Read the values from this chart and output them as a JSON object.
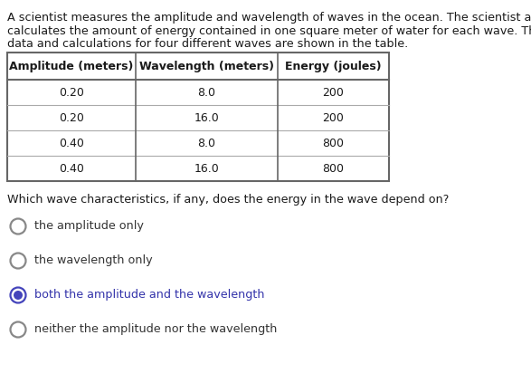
{
  "paragraph_lines": [
    "A scientist measures the amplitude and wavelength of waves in the ocean. The scientist also",
    "calculates the amount of energy contained in one square meter of water for each wave. The",
    "data and calculations for four different waves are shown in the table."
  ],
  "table_headers": [
    "Amplitude (meters)",
    "Wavelength (meters)",
    "Energy (joules)"
  ],
  "table_data": [
    [
      "0.20",
      "8.0",
      "200"
    ],
    [
      "0.20",
      "16.0",
      "200"
    ],
    [
      "0.40",
      "8.0",
      "800"
    ],
    [
      "0.40",
      "16.0",
      "800"
    ]
  ],
  "question": "Which wave characteristics, if any, does the energy in the wave depend on?",
  "choices": [
    "the amplitude only",
    "the wavelength only",
    "both the amplitude and the wavelength",
    "neither the amplitude nor the wavelength"
  ],
  "choice_colors": [
    "#333333",
    "#333333",
    "#3333aa",
    "#333333"
  ],
  "selected_index": 2,
  "bg_color": "#ffffff",
  "text_color": "#1a1a1a",
  "selected_ring_color": "#4444bb",
  "unselected_ring_color": "#888888",
  "table_border_color": "#666666",
  "table_inner_color": "#aaaaaa",
  "header_font_size": 9.0,
  "body_font_size": 9.0,
  "para_font_size": 9.2,
  "question_font_size": 9.2,
  "choice_font_size": 9.2
}
